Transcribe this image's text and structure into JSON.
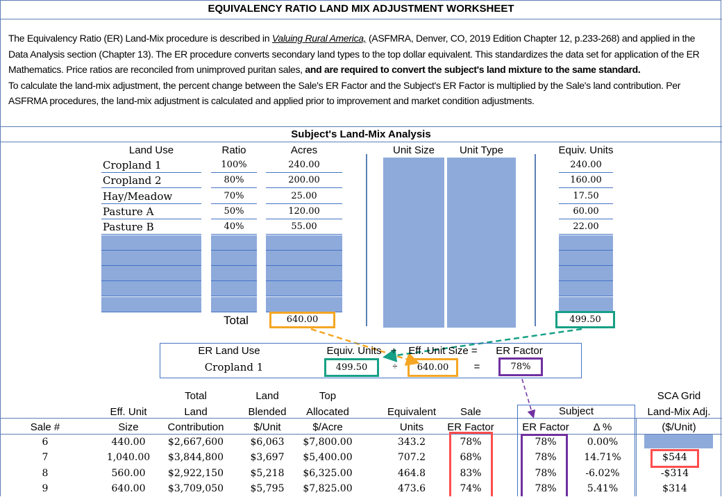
{
  "title": "EQUIVALENCY RATIO LAND MIX ADJUSTMENT WORKSHEET",
  "intro": {
    "p1": "The Equivalency Ratio (ER) Land-Mix procedure is described in ",
    "book": "Valuing Rural America,",
    "p2": " (ASFMRA, Denver, CO, 2019 Edition Chapter 12, p.233-268) and applied in the Data Analysis section (Chapter 13). The ER procedure converts secondary land types to the top dollar equivalent. This standardizes the data set for application of the ER Mathematics. Price ratios are reconciled from unimproved puritan sales, ",
    "bold": " and are required to convert the subject's land mixture to the same standard.",
    "p3": "To calculate the land-mix adjustment, the percent change between the Sale's ER Factor and the Subject's ER Factor is multiplied by the Sale's land contribution. Per ASFRMA procedures, the land-mix adjustment is calculated and applied prior to improvement and market condition adjustments."
  },
  "subject": {
    "heading": "Subject's Land-Mix Analysis",
    "headers": {
      "land_use": "Land Use",
      "ratio": "Ratio",
      "acres": "Acres",
      "unit_size": "Unit Size",
      "unit_type": "Unit Type",
      "equiv_units": "Equiv. Units"
    },
    "rows": [
      {
        "land_use": "Cropland 1",
        "ratio": "100%",
        "acres": "240.00",
        "equiv": "240.00"
      },
      {
        "land_use": "Cropland 2",
        "ratio": "80%",
        "acres": "200.00",
        "equiv": "160.00"
      },
      {
        "land_use": "Hay/Meadow",
        "ratio": "70%",
        "acres": "25.00",
        "equiv": "17.50"
      },
      {
        "land_use": "Pasture A",
        "ratio": "50%",
        "acres": "120.00",
        "equiv": "60.00"
      },
      {
        "land_use": "Pasture B",
        "ratio": "40%",
        "acres": "55.00",
        "equiv": "22.00"
      }
    ],
    "total_label": "Total",
    "total_acres": "640.00",
    "total_equiv": "499.50"
  },
  "er": {
    "h_land_use": "ER Land Use",
    "h_equiv": "Equiv. Units",
    "h_div": "÷",
    "h_eff": "Eff. Unit Size =",
    "h_factor": "ER Factor",
    "land_use": "Cropland 1",
    "equiv": "499.50",
    "div": "÷",
    "eff": "640.00",
    "eq": "=",
    "factor": "78%"
  },
  "sales": {
    "headers": {
      "sale": "Sale #",
      "eff1": "Eff. Unit",
      "eff2": "Size",
      "tl1": "Total",
      "tl2": "Land",
      "tl3": "Contribution",
      "lb1": "Land",
      "lb2": "Blended",
      "lb3": "$/Unit",
      "top1": "Top",
      "top2": "Allocated",
      "top3": "$/Acre",
      "eq1": "Equivalent",
      "eq2": "Units",
      "ser1": "Sale",
      "ser2": "ER Factor",
      "subject": "Subject",
      "sub_er": "ER Factor",
      "delta": "Δ %",
      "sca1": "SCA Grid",
      "sca2": "Land-Mix Adj.",
      "sca3": "($/Unit)"
    },
    "rows": [
      {
        "sale": "6",
        "eff": "440.00",
        "total": "$2,667,600",
        "blended": "$6,063",
        "top": "$7,800.00",
        "equiv": "343.2",
        "sale_er": "78%",
        "sub_er": "78%",
        "delta": "0.00%",
        "adj": ""
      },
      {
        "sale": "7",
        "eff": "1,040.00",
        "total": "$3,844,800",
        "blended": "$3,697",
        "top": "$5,400.00",
        "equiv": "707.2",
        "sale_er": "68%",
        "sub_er": "78%",
        "delta": "14.71%",
        "adj": "$544"
      },
      {
        "sale": "8",
        "eff": "560.00",
        "total": "$2,922,150",
        "blended": "$5,218",
        "top": "$6,325.00",
        "equiv": "464.8",
        "sale_er": "83%",
        "sub_er": "78%",
        "delta": "-6.02%",
        "adj": "-$314"
      },
      {
        "sale": "9",
        "eff": "640.00",
        "total": "$3,709,050",
        "blended": "$5,795",
        "top": "$7,825.00",
        "equiv": "473.6",
        "sale_er": "74%",
        "sub_er": "78%",
        "delta": "5.41%",
        "adj": "$314"
      }
    ]
  },
  "colors": {
    "fill": "#8eaadb",
    "orange": "#f5a623",
    "green": "#16a085",
    "purple": "#7030a0",
    "red": "#ff4d4d"
  }
}
